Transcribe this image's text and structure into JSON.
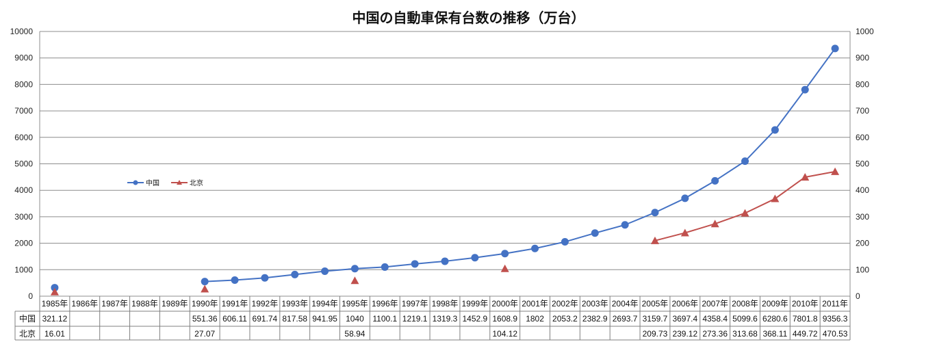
{
  "chart_data": {
    "type": "line",
    "title": "中国の自動車保有台数の推移（万台）",
    "categories": [
      "1985年",
      "1986年",
      "1987年",
      "1988年",
      "1989年",
      "1990年",
      "1991年",
      "1992年",
      "1993年",
      "1994年",
      "1995年",
      "1996年",
      "1997年",
      "1998年",
      "1999年",
      "2000年",
      "2001年",
      "2002年",
      "2003年",
      "2004年",
      "2005年",
      "2006年",
      "2007年",
      "2008年",
      "2009年",
      "2010年",
      "2011年"
    ],
    "y_left": {
      "range": [
        0,
        10000
      ],
      "ticks": [
        "0",
        "1000",
        "2000",
        "3000",
        "4000",
        "5000",
        "6000",
        "7000",
        "8000",
        "9000",
        "10000"
      ]
    },
    "y_right": {
      "range": [
        0,
        1000
      ],
      "ticks": [
        "0",
        "100",
        "200",
        "300",
        "400",
        "500",
        "600",
        "700",
        "800",
        "900",
        "1000"
      ]
    },
    "grid": true,
    "legend_position": "left",
    "series": [
      {
        "name": "中国",
        "axis": "left",
        "color": "#4472C4",
        "marker": "circle",
        "values": [
          321.12,
          null,
          null,
          null,
          null,
          551.36,
          606.11,
          691.74,
          817.58,
          941.95,
          1040,
          1100.1,
          1219.1,
          1319.3,
          1452.9,
          1608.9,
          1802,
          2053.2,
          2382.9,
          2693.7,
          3159.7,
          3697.4,
          4358.4,
          5099.6,
          6280.6,
          7801.8,
          9356.3
        ],
        "labels": [
          "321.12",
          "",
          "",
          "",
          "",
          "551.36",
          "606.11",
          "691.74",
          "817.58",
          "941.95",
          "1040",
          "1100.1",
          "1219.1",
          "1319.3",
          "1452.9",
          "1608.9",
          "1802",
          "2053.2",
          "2382.9",
          "2693.7",
          "3159.7",
          "3697.4",
          "4358.4",
          "5099.6",
          "6280.6",
          "7801.8",
          "9356.3"
        ]
      },
      {
        "name": "北京",
        "axis": "right",
        "color": "#C0504D",
        "marker": "triangle",
        "values": [
          16.01,
          null,
          null,
          null,
          null,
          27.07,
          null,
          null,
          null,
          null,
          58.94,
          null,
          null,
          null,
          null,
          104.12,
          null,
          null,
          null,
          null,
          209.73,
          239.12,
          273.36,
          313.68,
          368.11,
          449.72,
          470.53
        ],
        "labels": [
          "16.01",
          "",
          "",
          "",
          "",
          "27.07",
          "",
          "",
          "",
          "",
          "58.94",
          "",
          "",
          "",
          "",
          "104.12",
          "",
          "",
          "",
          "",
          "209.73",
          "239.12",
          "273.36",
          "313.68",
          "368.11",
          "449.72",
          "470.53"
        ]
      }
    ]
  }
}
